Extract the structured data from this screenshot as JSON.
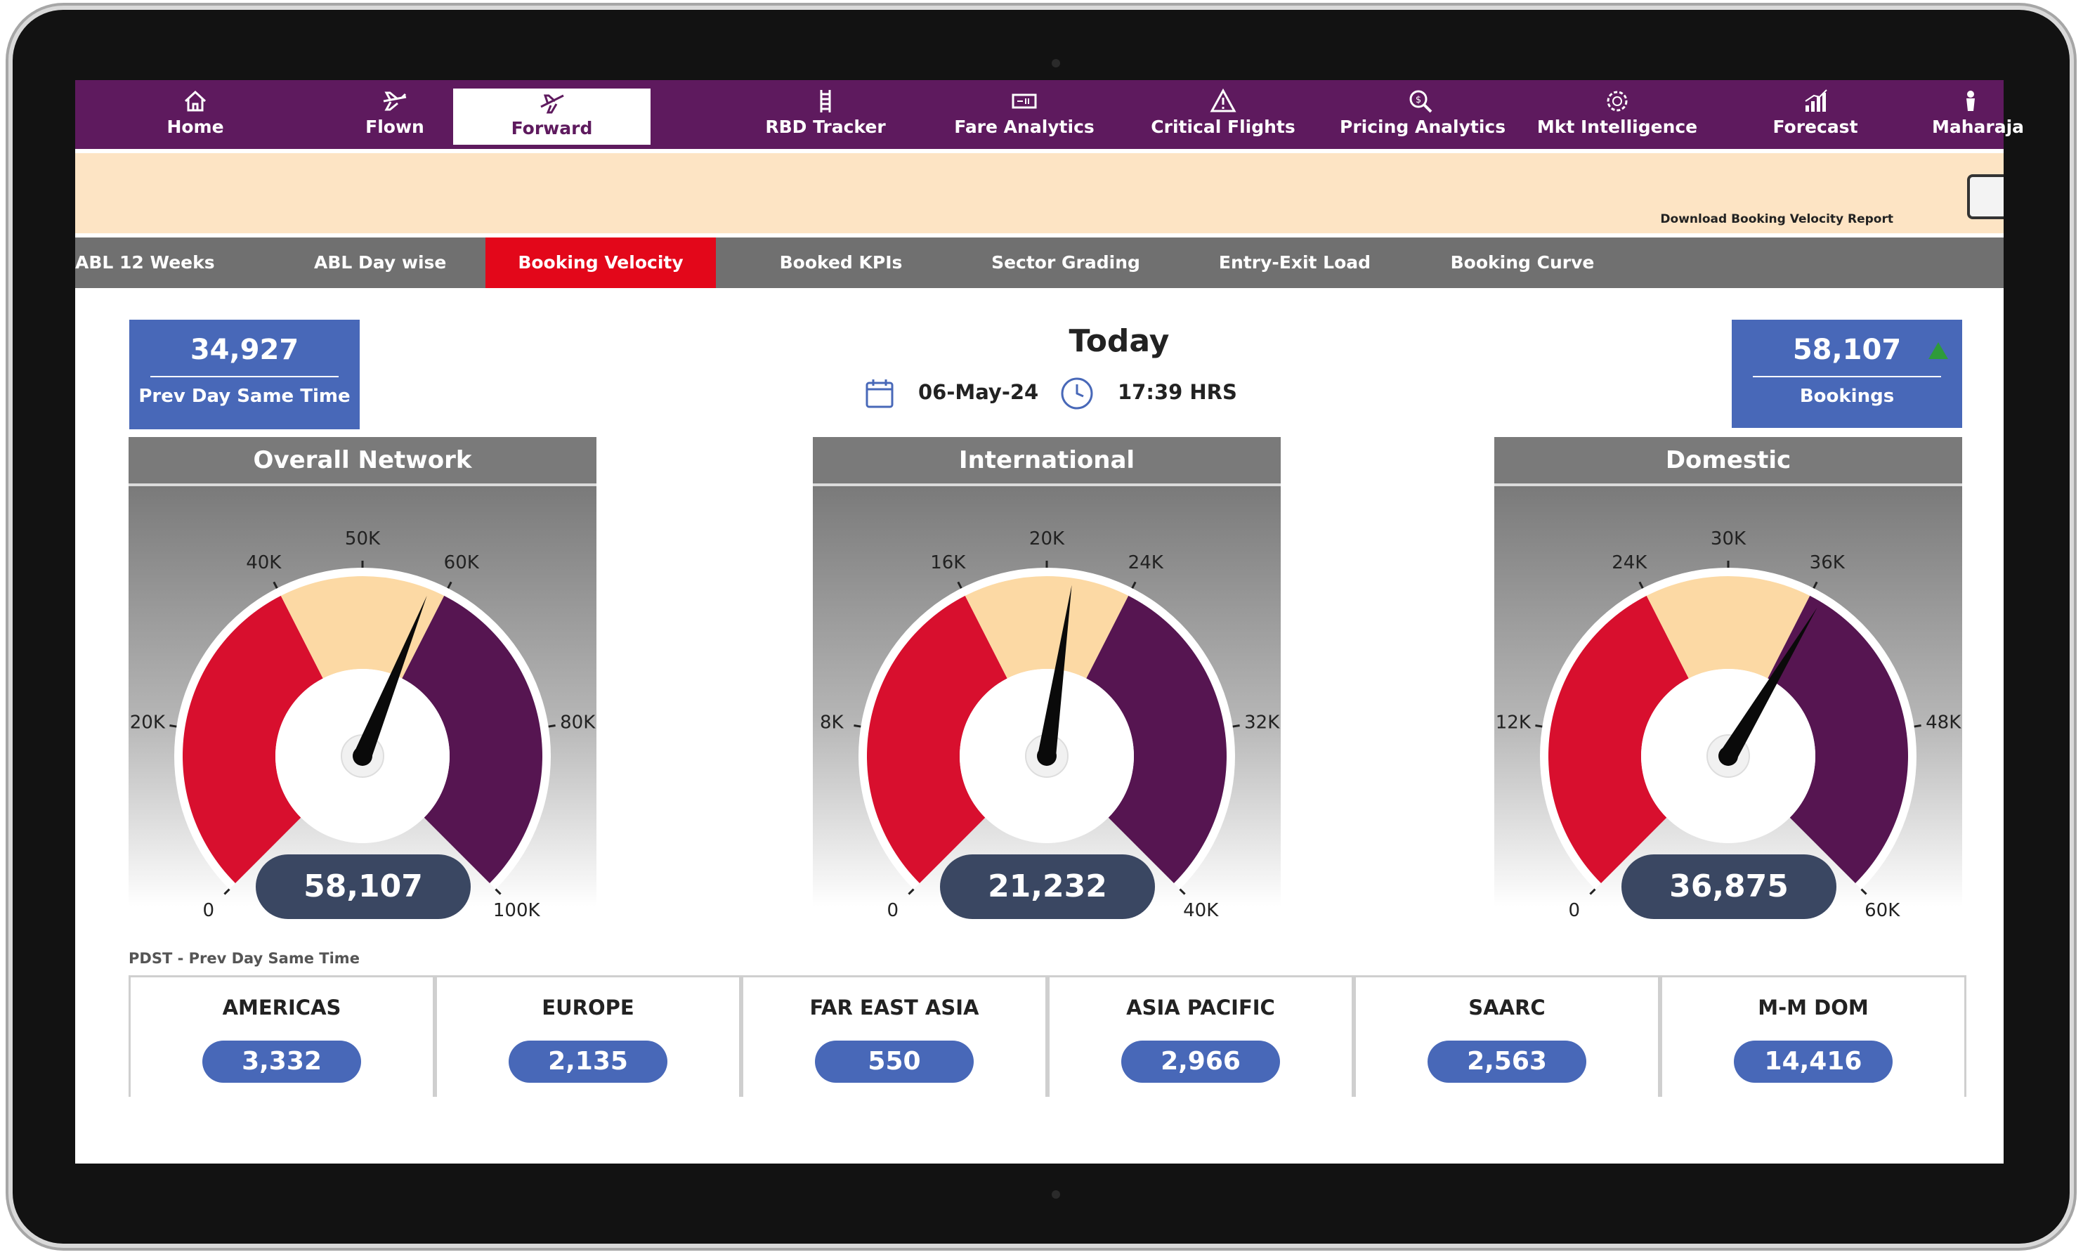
{
  "nav": {
    "items": [
      {
        "label": "Home",
        "icon": "home-icon"
      },
      {
        "label": "Flown",
        "icon": "plane-icon"
      },
      {
        "label": "Forward",
        "icon": "plane-forward-icon"
      },
      {
        "label": "RBD Tracker",
        "icon": "ladder-icon"
      },
      {
        "label": "Fare Analytics",
        "icon": "ticket-icon"
      },
      {
        "label": "Critical Flights",
        "icon": "warning-icon"
      },
      {
        "label": "Pricing Analytics",
        "icon": "magnifier-dollar-icon"
      },
      {
        "label": "Mkt Intelligence",
        "icon": "gear-brain-icon"
      },
      {
        "label": "Forecast",
        "icon": "bar-chart-icon"
      },
      {
        "label": "Maharaja",
        "icon": "maharaja-icon"
      }
    ],
    "active": "Forward",
    "colors": {
      "bar": "#5e1a5e",
      "active_bg": "#ffffff"
    }
  },
  "banner": {
    "download_text": "Download Booking Velocity Report",
    "download_icon": "csv-download-icon",
    "color": "#fde4c4"
  },
  "tabs": {
    "items": [
      "ABL 12 Weeks",
      "ABL Day wise",
      "Booking Velocity",
      "Booked KPIs",
      "Sector Grading",
      "Entry-Exit Load",
      "Booking Curve"
    ],
    "active": "Booking Velocity",
    "colors": {
      "bar": "#707070",
      "active_bg": "#e3071a"
    }
  },
  "kpi_left": {
    "value": "34,927",
    "label": "Prev Day Same Time"
  },
  "kpi_right": {
    "value": "58,107",
    "label": "Bookings",
    "trend": "up"
  },
  "today": {
    "title": "Today",
    "date": "06-May-24",
    "time": "17:39 HRS"
  },
  "gauges": [
    {
      "title": "Overall Network",
      "value": 58107,
      "value_text": "58,107",
      "max": 100000,
      "ticks": [
        "0",
        "20K",
        "40K",
        "50K",
        "60K",
        "80K",
        "100K"
      ]
    },
    {
      "title": "International",
      "value": 21232,
      "value_text": "21,232",
      "max": 40000,
      "ticks": [
        "0",
        "8K",
        "16K",
        "20K",
        "24K",
        "32K",
        "40K"
      ]
    },
    {
      "title": "Domestic",
      "value": 36875,
      "value_text": "36,875",
      "max": 60000,
      "ticks": [
        "0",
        "12K",
        "24K",
        "30K",
        "36K",
        "48K",
        "60K"
      ]
    }
  ],
  "gauge_colors": {
    "low": "#d80f2e",
    "mid": "#fcd9a4",
    "high": "#561551",
    "needle": "#0a0a0a",
    "pill": "#3a4762"
  },
  "pdst_note": "PDST - Prev Day Same Time",
  "regions": [
    {
      "name": "AMERICAS",
      "value": "3,332"
    },
    {
      "name": "EUROPE",
      "value": "2,135"
    },
    {
      "name": "FAR EAST ASIA",
      "value": "550"
    },
    {
      "name": "ASIA PACIFIC",
      "value": "2,966"
    },
    {
      "name": "SAARC",
      "value": "2,563"
    },
    {
      "name": "M-M DOM",
      "value": "14,416"
    }
  ]
}
